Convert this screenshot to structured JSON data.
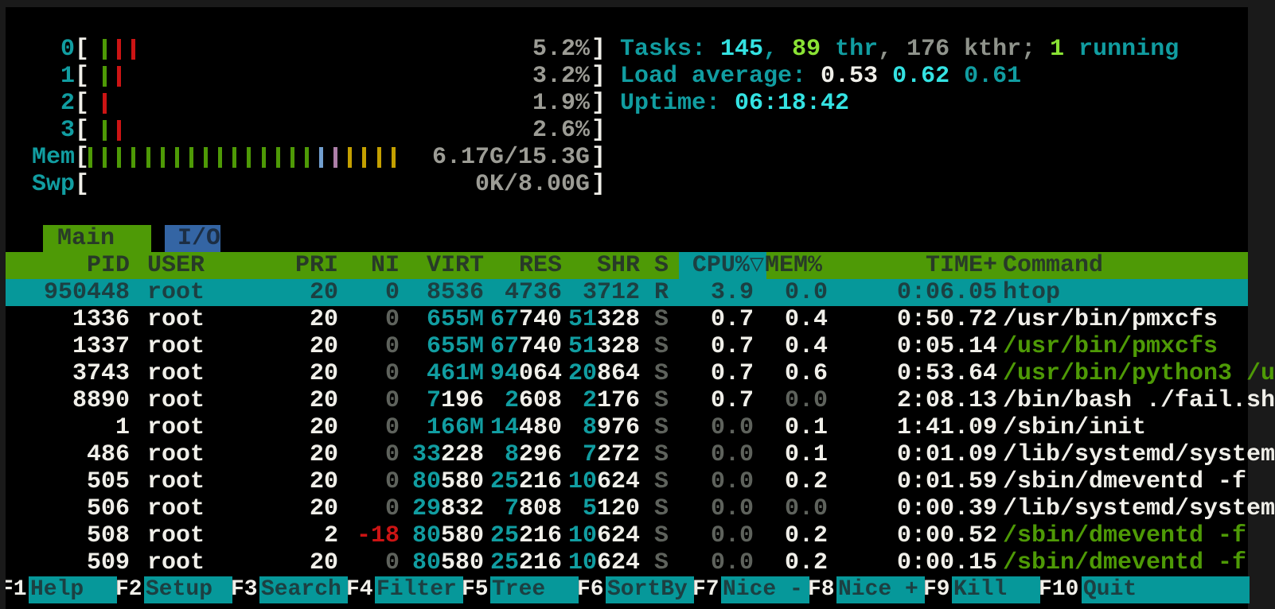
{
  "palette": {
    "background": "#000000",
    "frame": "#1a1a1a",
    "white": "#f0efe9",
    "dim_gray": "#5e625c",
    "mid_gray": "#8f938b",
    "meter_gray": "#9c9c95",
    "cyan": "#119da1",
    "bright_cyan": "#34e2e2",
    "green": "#4e9a06",
    "bright_green": "#8ae234",
    "red": "#cc1414",
    "blue": "#729fcf",
    "purple": "#ad7fa8",
    "yellow": "#c4a000",
    "selection_bg": "#06989a",
    "selection_text": "#1c4042",
    "header_bg": "#4e9a06",
    "header_text": "#283a28",
    "io_tab_bg": "#3465a4",
    "io_tab_text": "#1c2e44"
  },
  "meters": {
    "cpus": [
      {
        "label": "0",
        "value": "5.2%",
        "bars": [
          "green",
          "red",
          "red"
        ]
      },
      {
        "label": "1",
        "value": "3.2%",
        "bars": [
          "green",
          "red"
        ]
      },
      {
        "label": "2",
        "value": "1.9%",
        "bars": [
          "red"
        ]
      },
      {
        "label": "3",
        "value": "2.6%",
        "bars": [
          "green",
          "red"
        ]
      }
    ],
    "mem": {
      "label": "Mem",
      "value": "6.17G/15.3G",
      "bars": [
        "green",
        "green",
        "green",
        "green",
        "green",
        "green",
        "green",
        "green",
        "green",
        "green",
        "green",
        "green",
        "green",
        "green",
        "green",
        "green",
        "blue",
        "purple",
        "yellow",
        "yellow",
        "yellow",
        "yellow"
      ]
    },
    "swp": {
      "label": "Swp",
      "value": "0K/8.00G",
      "bars": []
    }
  },
  "summary": {
    "tasks_line": [
      [
        "Tasks: ",
        "cyan"
      ],
      [
        "145",
        "bcyan"
      ],
      [
        ", ",
        "cyan"
      ],
      [
        "89",
        "bgreen"
      ],
      [
        " thr",
        "cyan"
      ],
      [
        ", ",
        "mgray"
      ],
      [
        "176",
        "mgray"
      ],
      [
        " kthr",
        "mgray"
      ],
      [
        "; ",
        "mgray"
      ],
      [
        "1",
        "bgreen"
      ],
      [
        " running",
        "cyan"
      ]
    ],
    "load_line": [
      [
        "Load average: ",
        "cyan"
      ],
      [
        "0.53",
        "white"
      ],
      [
        " ",
        "cyan"
      ],
      [
        "0.62",
        "bcyan"
      ],
      [
        " ",
        "cyan"
      ],
      [
        "0.61",
        "cyan"
      ]
    ],
    "uptime_line": [
      [
        "Uptime: ",
        "cyan"
      ],
      [
        "06:18:42",
        "bcyan"
      ]
    ]
  },
  "tabs": [
    {
      "label": "Main",
      "active": true
    },
    {
      "label": "I/O",
      "active": false
    }
  ],
  "table": {
    "sort_column": "CPU%",
    "header": {
      "pid": "PID",
      "user": "USER",
      "pri": "PRI",
      "ni": "NI",
      "virt": "VIRT",
      "res": "RES",
      "shr": "SHR",
      "s": "S",
      "cpu": "CPU%▽",
      "mem": "MEM%",
      "time": "TIME+",
      "cmd": "Command"
    },
    "rows": [
      {
        "selected": true,
        "pid": "950448",
        "user": "root",
        "pri": "20",
        "ni": [
          "0",
          "dim"
        ],
        "virt": [
          [
            "8536",
            "white"
          ]
        ],
        "res": [
          [
            "4736",
            "white"
          ]
        ],
        "shr": [
          [
            "3712",
            "white"
          ]
        ],
        "s": [
          "R",
          "dim"
        ],
        "cpu": [
          "3.9",
          "white"
        ],
        "mem": [
          "0.0",
          "dim"
        ],
        "time": "0:06.05",
        "cmd": [
          "htop",
          "white"
        ]
      },
      {
        "selected": false,
        "pid": "1336",
        "user": "root",
        "pri": "20",
        "ni": [
          "0",
          "dim"
        ],
        "virt": [
          [
            "655M",
            "cyan"
          ]
        ],
        "res": [
          [
            "67",
            "cyan"
          ],
          [
            "740",
            "white"
          ]
        ],
        "shr": [
          [
            "51",
            "cyan"
          ],
          [
            "328",
            "white"
          ]
        ],
        "s": [
          "S",
          "dim"
        ],
        "cpu": [
          "0.7",
          "white"
        ],
        "mem": [
          "0.4",
          "white"
        ],
        "time": "0:50.72",
        "cmd": [
          "/usr/bin/pmxcfs",
          "white"
        ]
      },
      {
        "selected": false,
        "pid": "1337",
        "user": "root",
        "pri": "20",
        "ni": [
          "0",
          "dim"
        ],
        "virt": [
          [
            "655M",
            "cyan"
          ]
        ],
        "res": [
          [
            "67",
            "cyan"
          ],
          [
            "740",
            "white"
          ]
        ],
        "shr": [
          [
            "51",
            "cyan"
          ],
          [
            "328",
            "white"
          ]
        ],
        "s": [
          "S",
          "dim"
        ],
        "cpu": [
          "0.7",
          "white"
        ],
        "mem": [
          "0.4",
          "white"
        ],
        "time": "0:05.14",
        "cmd": [
          "/usr/bin/pmxcfs",
          "green"
        ]
      },
      {
        "selected": false,
        "pid": "3743",
        "user": "root",
        "pri": "20",
        "ni": [
          "0",
          "dim"
        ],
        "virt": [
          [
            "461M",
            "cyan"
          ]
        ],
        "res": [
          [
            "94",
            "cyan"
          ],
          [
            "064",
            "white"
          ]
        ],
        "shr": [
          [
            "20",
            "cyan"
          ],
          [
            "864",
            "white"
          ]
        ],
        "s": [
          "S",
          "dim"
        ],
        "cpu": [
          "0.7",
          "white"
        ],
        "mem": [
          "0.6",
          "white"
        ],
        "time": "0:53.64",
        "cmd": [
          "/usr/bin/python3 /u",
          "green"
        ]
      },
      {
        "selected": false,
        "pid": "8890",
        "user": "root",
        "pri": "20",
        "ni": [
          "0",
          "dim"
        ],
        "virt": [
          [
            "7",
            "cyan"
          ],
          [
            "196",
            "white"
          ]
        ],
        "res": [
          [
            "2",
            "cyan"
          ],
          [
            "608",
            "white"
          ]
        ],
        "shr": [
          [
            "2",
            "cyan"
          ],
          [
            "176",
            "white"
          ]
        ],
        "s": [
          "S",
          "dim"
        ],
        "cpu": [
          "0.7",
          "white"
        ],
        "mem": [
          "0.0",
          "dim"
        ],
        "time": "2:08.13",
        "cmd": [
          "/bin/bash ./fail.sh",
          "white"
        ]
      },
      {
        "selected": false,
        "pid": "1",
        "user": "root",
        "pri": "20",
        "ni": [
          "0",
          "dim"
        ],
        "virt": [
          [
            "166M",
            "cyan"
          ]
        ],
        "res": [
          [
            "14",
            "cyan"
          ],
          [
            "480",
            "white"
          ]
        ],
        "shr": [
          [
            "8",
            "cyan"
          ],
          [
            "976",
            "white"
          ]
        ],
        "s": [
          "S",
          "dim"
        ],
        "cpu": [
          "0.0",
          "dim"
        ],
        "mem": [
          "0.1",
          "white"
        ],
        "time": "1:41.09",
        "cmd": [
          "/sbin/init",
          "white"
        ]
      },
      {
        "selected": false,
        "pid": "486",
        "user": "root",
        "pri": "20",
        "ni": [
          "0",
          "dim"
        ],
        "virt": [
          [
            "33",
            "cyan"
          ],
          [
            "228",
            "white"
          ]
        ],
        "res": [
          [
            "8",
            "cyan"
          ],
          [
            "296",
            "white"
          ]
        ],
        "shr": [
          [
            "7",
            "cyan"
          ],
          [
            "272",
            "white"
          ]
        ],
        "s": [
          "S",
          "dim"
        ],
        "cpu": [
          "0.0",
          "dim"
        ],
        "mem": [
          "0.1",
          "white"
        ],
        "time": "0:01.09",
        "cmd": [
          "/lib/systemd/system",
          "white"
        ]
      },
      {
        "selected": false,
        "pid": "505",
        "user": "root",
        "pri": "20",
        "ni": [
          "0",
          "dim"
        ],
        "virt": [
          [
            "80",
            "cyan"
          ],
          [
            "580",
            "white"
          ]
        ],
        "res": [
          [
            "25",
            "cyan"
          ],
          [
            "216",
            "white"
          ]
        ],
        "shr": [
          [
            "10",
            "cyan"
          ],
          [
            "624",
            "white"
          ]
        ],
        "s": [
          "S",
          "dim"
        ],
        "cpu": [
          "0.0",
          "dim"
        ],
        "mem": [
          "0.2",
          "white"
        ],
        "time": "0:01.59",
        "cmd": [
          "/sbin/dmeventd -f",
          "white"
        ]
      },
      {
        "selected": false,
        "pid": "506",
        "user": "root",
        "pri": "20",
        "ni": [
          "0",
          "dim"
        ],
        "virt": [
          [
            "29",
            "cyan"
          ],
          [
            "832",
            "white"
          ]
        ],
        "res": [
          [
            "7",
            "cyan"
          ],
          [
            "808",
            "white"
          ]
        ],
        "shr": [
          [
            "5",
            "cyan"
          ],
          [
            "120",
            "white"
          ]
        ],
        "s": [
          "S",
          "dim"
        ],
        "cpu": [
          "0.0",
          "dim"
        ],
        "mem": [
          "0.0",
          "dim"
        ],
        "time": "0:00.39",
        "cmd": [
          "/lib/systemd/system",
          "white"
        ]
      },
      {
        "selected": false,
        "pid": "508",
        "user": "root",
        "pri": "2",
        "ni": [
          "-18",
          "red"
        ],
        "virt": [
          [
            "80",
            "cyan"
          ],
          [
            "580",
            "white"
          ]
        ],
        "res": [
          [
            "25",
            "cyan"
          ],
          [
            "216",
            "white"
          ]
        ],
        "shr": [
          [
            "10",
            "cyan"
          ],
          [
            "624",
            "white"
          ]
        ],
        "s": [
          "S",
          "dim"
        ],
        "cpu": [
          "0.0",
          "dim"
        ],
        "mem": [
          "0.2",
          "white"
        ],
        "time": "0:00.52",
        "cmd": [
          "/sbin/dmeventd -f",
          "green"
        ]
      },
      {
        "selected": false,
        "pid": "509",
        "user": "root",
        "pri": "20",
        "ni": [
          "0",
          "dim"
        ],
        "virt": [
          [
            "80",
            "cyan"
          ],
          [
            "580",
            "white"
          ]
        ],
        "res": [
          [
            "25",
            "cyan"
          ],
          [
            "216",
            "white"
          ]
        ],
        "shr": [
          [
            "10",
            "cyan"
          ],
          [
            "624",
            "white"
          ]
        ],
        "s": [
          "S",
          "dim"
        ],
        "cpu": [
          "0.0",
          "dim"
        ],
        "mem": [
          "0.2",
          "white"
        ],
        "time": "0:00.15",
        "cmd": [
          "/sbin/dmeventd -f",
          "green"
        ]
      }
    ]
  },
  "fn_keys": [
    {
      "key": "F1",
      "label": "Help"
    },
    {
      "key": "F2",
      "label": "Setup"
    },
    {
      "key": "F3",
      "label": "Search"
    },
    {
      "key": "F4",
      "label": "Filter"
    },
    {
      "key": "F5",
      "label": "Tree"
    },
    {
      "key": "F6",
      "label": "SortBy"
    },
    {
      "key": "F7",
      "label": "Nice -"
    },
    {
      "key": "F8",
      "label": "Nice +"
    },
    {
      "key": "F9",
      "label": "Kill"
    },
    {
      "key": "F10",
      "label": "Quit"
    }
  ]
}
